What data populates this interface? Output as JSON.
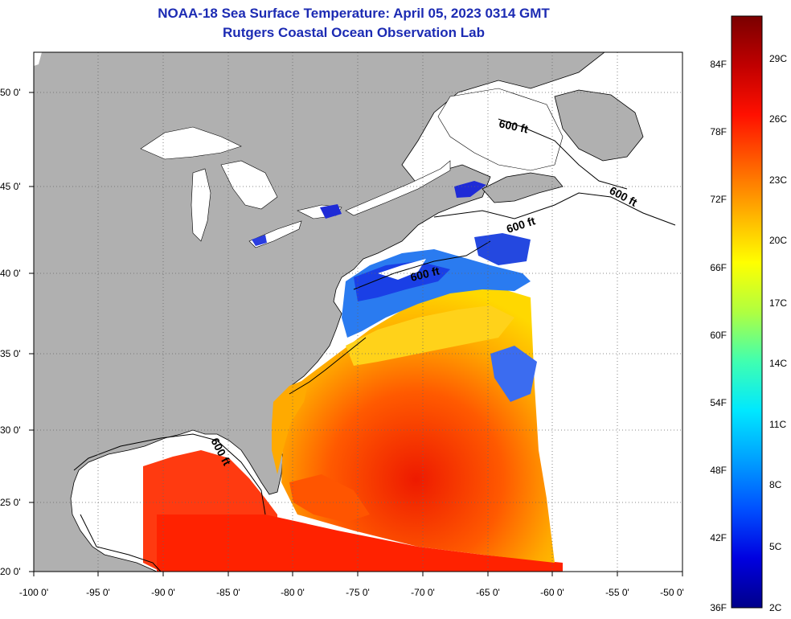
{
  "title_line1": "NOAA-18 Sea Surface Temperature:  April 05, 2023 0314 GMT",
  "title_line2": "Rutgers Coastal Ocean Observation Lab",
  "lat_labels": [
    "50 0'",
    "45 0'",
    "40 0'",
    "35 0'",
    "30 0'",
    "25 0'",
    "20 0'"
  ],
  "lon_labels": [
    "-100 0'",
    "-95 0'",
    "-90 0'",
    "-85 0'",
    "-80 0'",
    "-75 0'",
    "-70 0'",
    "-65 0'",
    "-60 0'",
    "-55 0'",
    "-50 0'"
  ],
  "contour_label": "600 ft",
  "colorbar": {
    "fahrenheit_labels": [
      "84F",
      "78F",
      "72F",
      "66F",
      "60F",
      "54F",
      "48F",
      "42F",
      "36F"
    ],
    "celsius_labels": [
      "29C",
      "26C",
      "23C",
      "20C",
      "17C",
      "14C",
      "11C",
      "8C",
      "5C",
      "2C"
    ],
    "colors": [
      "#00008a",
      "#0000e0",
      "#0050ff",
      "#00a0ff",
      "#00e8ff",
      "#40ffb0",
      "#b0ff40",
      "#ffff00",
      "#ffb000",
      "#ff6000",
      "#ff1000",
      "#c00000",
      "#7a0000"
    ]
  },
  "colors": {
    "land": "#b0b0b0",
    "no_data": "#ffffff",
    "title": "#1c2bb3",
    "warm": "#ff3300",
    "mid": "#ff9900",
    "cool": "#ffee00",
    "cold": "#1e5aff"
  }
}
